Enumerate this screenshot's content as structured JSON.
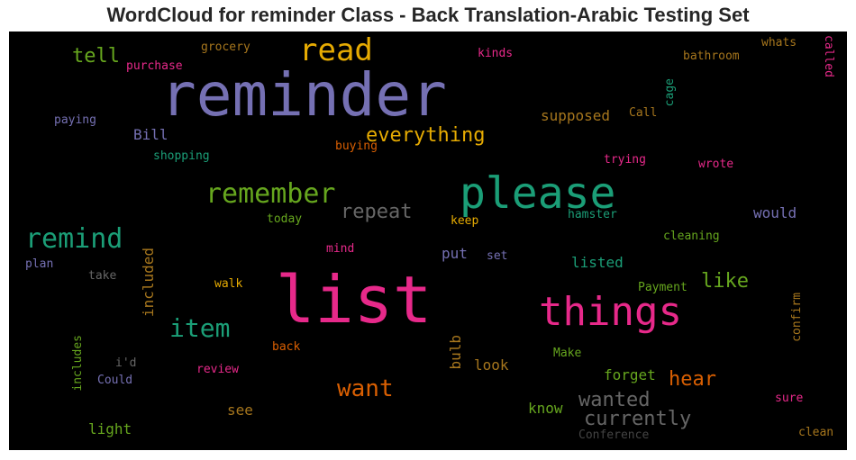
{
  "title": "WordCloud for reminder Class - Back Translation-Arabic Testing Set",
  "colors": {
    "background": "#000000",
    "purple": "#7570b3",
    "pink": "#e7298a",
    "teal": "#1b9e77",
    "orange": "#d95f02",
    "green": "#66a61e",
    "gold": "#e6ab02",
    "brown": "#a6761d",
    "gray": "#666666"
  },
  "words": [
    "reminder",
    "list",
    "please",
    "things",
    "read",
    "remember",
    "remind",
    "everything",
    "item",
    "want",
    "repeat",
    "tell",
    "wanted",
    "currently",
    "like",
    "hear",
    "supposed",
    "Bill",
    "would",
    "included",
    "forget",
    "listed",
    "put",
    "bulb",
    "look",
    "know",
    "light",
    "see",
    "grocery",
    "purchase",
    "kinds",
    "bathroom",
    "whats",
    "called",
    "paying",
    "cage",
    "Call",
    "buying",
    "shopping",
    "trying",
    "wrote",
    "today",
    "keep",
    "hamster",
    "cleaning",
    "mind",
    "set",
    "plan",
    "take",
    "walk",
    "Payment",
    "confirm",
    "includes",
    "back",
    "i'd",
    "Make",
    "review",
    "Could",
    "sure",
    "Conference",
    "clean"
  ]
}
